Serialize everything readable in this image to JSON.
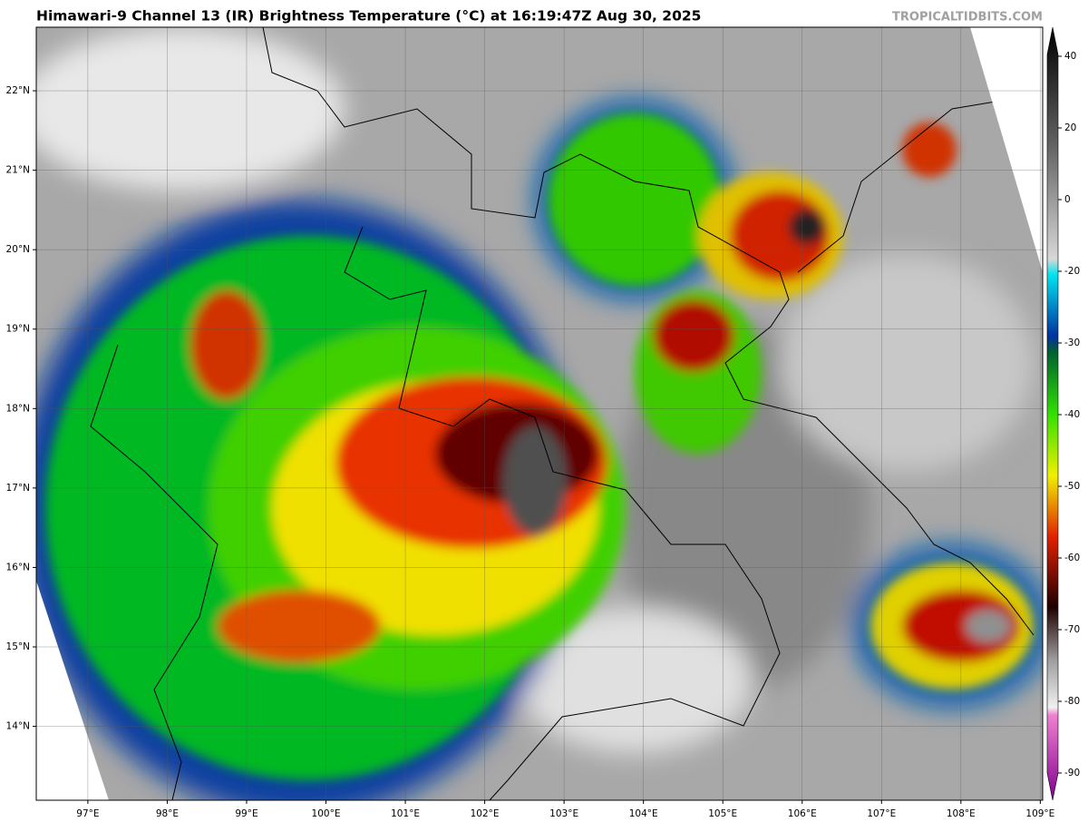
{
  "header": {
    "title": "Himawari-9 Channel 13 (IR) Brightness Temperature (°C) at 16:19:47Z Aug 30, 2025",
    "credit": "TROPICALTIDBITS.COM"
  },
  "map": {
    "xlim": [
      96.35,
      109.03
    ],
    "ylim": [
      13.07,
      22.8
    ],
    "lon_ticks": [
      {
        "value": 97,
        "label": "97°E"
      },
      {
        "value": 98,
        "label": "98°E"
      },
      {
        "value": 99,
        "label": "99°E"
      },
      {
        "value": 100,
        "label": "100°E"
      },
      {
        "value": 101,
        "label": "101°E"
      },
      {
        "value": 102,
        "label": "102°E"
      },
      {
        "value": 103,
        "label": "103°E"
      },
      {
        "value": 104,
        "label": "104°E"
      },
      {
        "value": 105,
        "label": "105°E"
      },
      {
        "value": 106,
        "label": "106°E"
      },
      {
        "value": 107,
        "label": "107°E"
      },
      {
        "value": 108,
        "label": "108°E"
      },
      {
        "value": 109,
        "label": "109°E"
      }
    ],
    "lat_ticks": [
      {
        "value": 14,
        "label": "14°N"
      },
      {
        "value": 15,
        "label": "15°N"
      },
      {
        "value": 16,
        "label": "16°N"
      },
      {
        "value": 17,
        "label": "17°N"
      },
      {
        "value": 18,
        "label": "18°N"
      },
      {
        "value": 19,
        "label": "19°N"
      },
      {
        "value": 20,
        "label": "20°N"
      },
      {
        "value": 21,
        "label": "21°N"
      },
      {
        "value": 22,
        "label": "22°N"
      }
    ]
  },
  "colorbar": {
    "ticks": [
      40,
      20,
      0,
      -20,
      -30,
      -40,
      -50,
      -60,
      -70,
      -80,
      -90
    ]
  }
}
